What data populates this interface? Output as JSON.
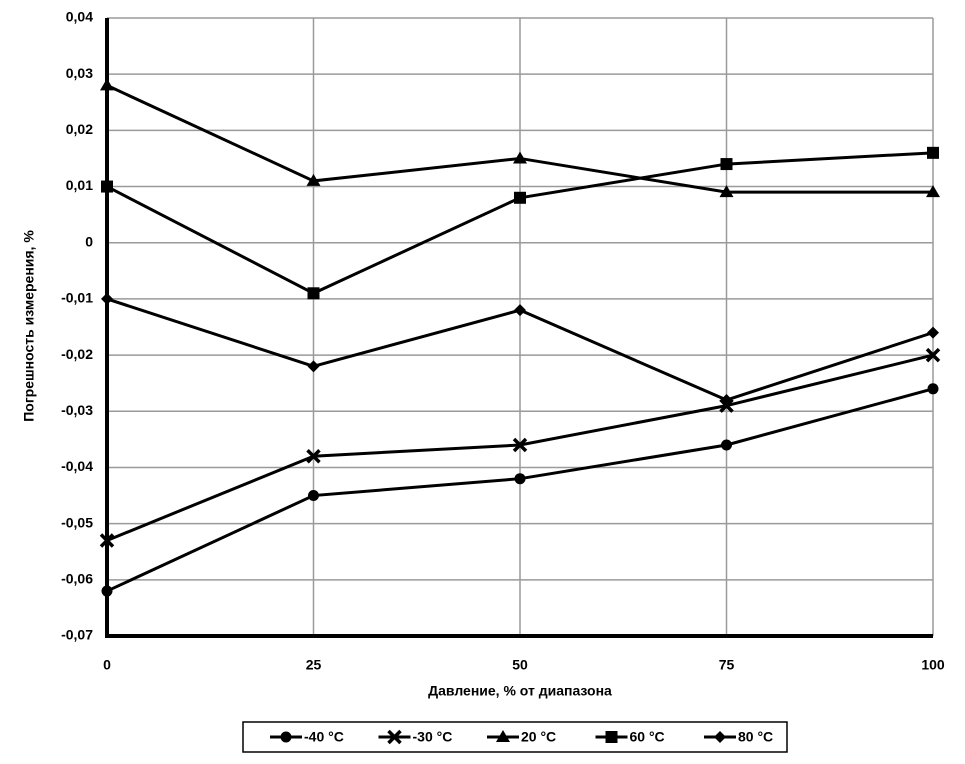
{
  "chart_data": {
    "type": "line",
    "xlabel": "Давление, % от диапазона",
    "ylabel": "Погрешность измерения, %",
    "x": [
      0,
      25,
      50,
      75,
      100
    ],
    "xlim": [
      0,
      100
    ],
    "xticks": [
      0,
      25,
      50,
      75,
      100
    ],
    "ylim": [
      -0.07,
      0.04
    ],
    "yticks": [
      {
        "value": -0.07,
        "label": "-0,07"
      },
      {
        "value": -0.06,
        "label": "-0,06"
      },
      {
        "value": -0.05,
        "label": "-0,05"
      },
      {
        "value": -0.04,
        "label": "-0,04"
      },
      {
        "value": -0.03,
        "label": "-0,03"
      },
      {
        "value": -0.02,
        "label": "-0,02"
      },
      {
        "value": -0.01,
        "label": "-0,01"
      },
      0,
      {
        "value": 0.01,
        "label": "0,01"
      },
      {
        "value": 0.02,
        "label": "0,02"
      },
      {
        "value": 0.03,
        "label": "0,03"
      },
      {
        "value": 0.04,
        "label": "0,04"
      }
    ],
    "grid": true,
    "legend": "bottom",
    "series": [
      {
        "name": "-40 °C",
        "color": "#000000",
        "marker": "circle",
        "values": [
          -0.062,
          -0.045,
          -0.042,
          -0.036,
          -0.026
        ]
      },
      {
        "name": "-30 °C",
        "color": "#000000",
        "marker": "cross",
        "values": [
          -0.053,
          -0.038,
          -0.036,
          -0.029,
          -0.02
        ]
      },
      {
        "name": "20 °C",
        "color": "#000000",
        "marker": "triangle",
        "values": [
          0.028,
          0.011,
          0.015,
          0.009,
          0.009
        ]
      },
      {
        "name": "60 °C",
        "color": "#000000",
        "marker": "square",
        "values": [
          0.01,
          -0.009,
          0.008,
          0.014,
          0.016
        ]
      },
      {
        "name": "80 °C",
        "color": "#000000",
        "marker": "diamond",
        "values": [
          -0.01,
          -0.022,
          -0.012,
          -0.028,
          -0.016
        ]
      }
    ]
  }
}
